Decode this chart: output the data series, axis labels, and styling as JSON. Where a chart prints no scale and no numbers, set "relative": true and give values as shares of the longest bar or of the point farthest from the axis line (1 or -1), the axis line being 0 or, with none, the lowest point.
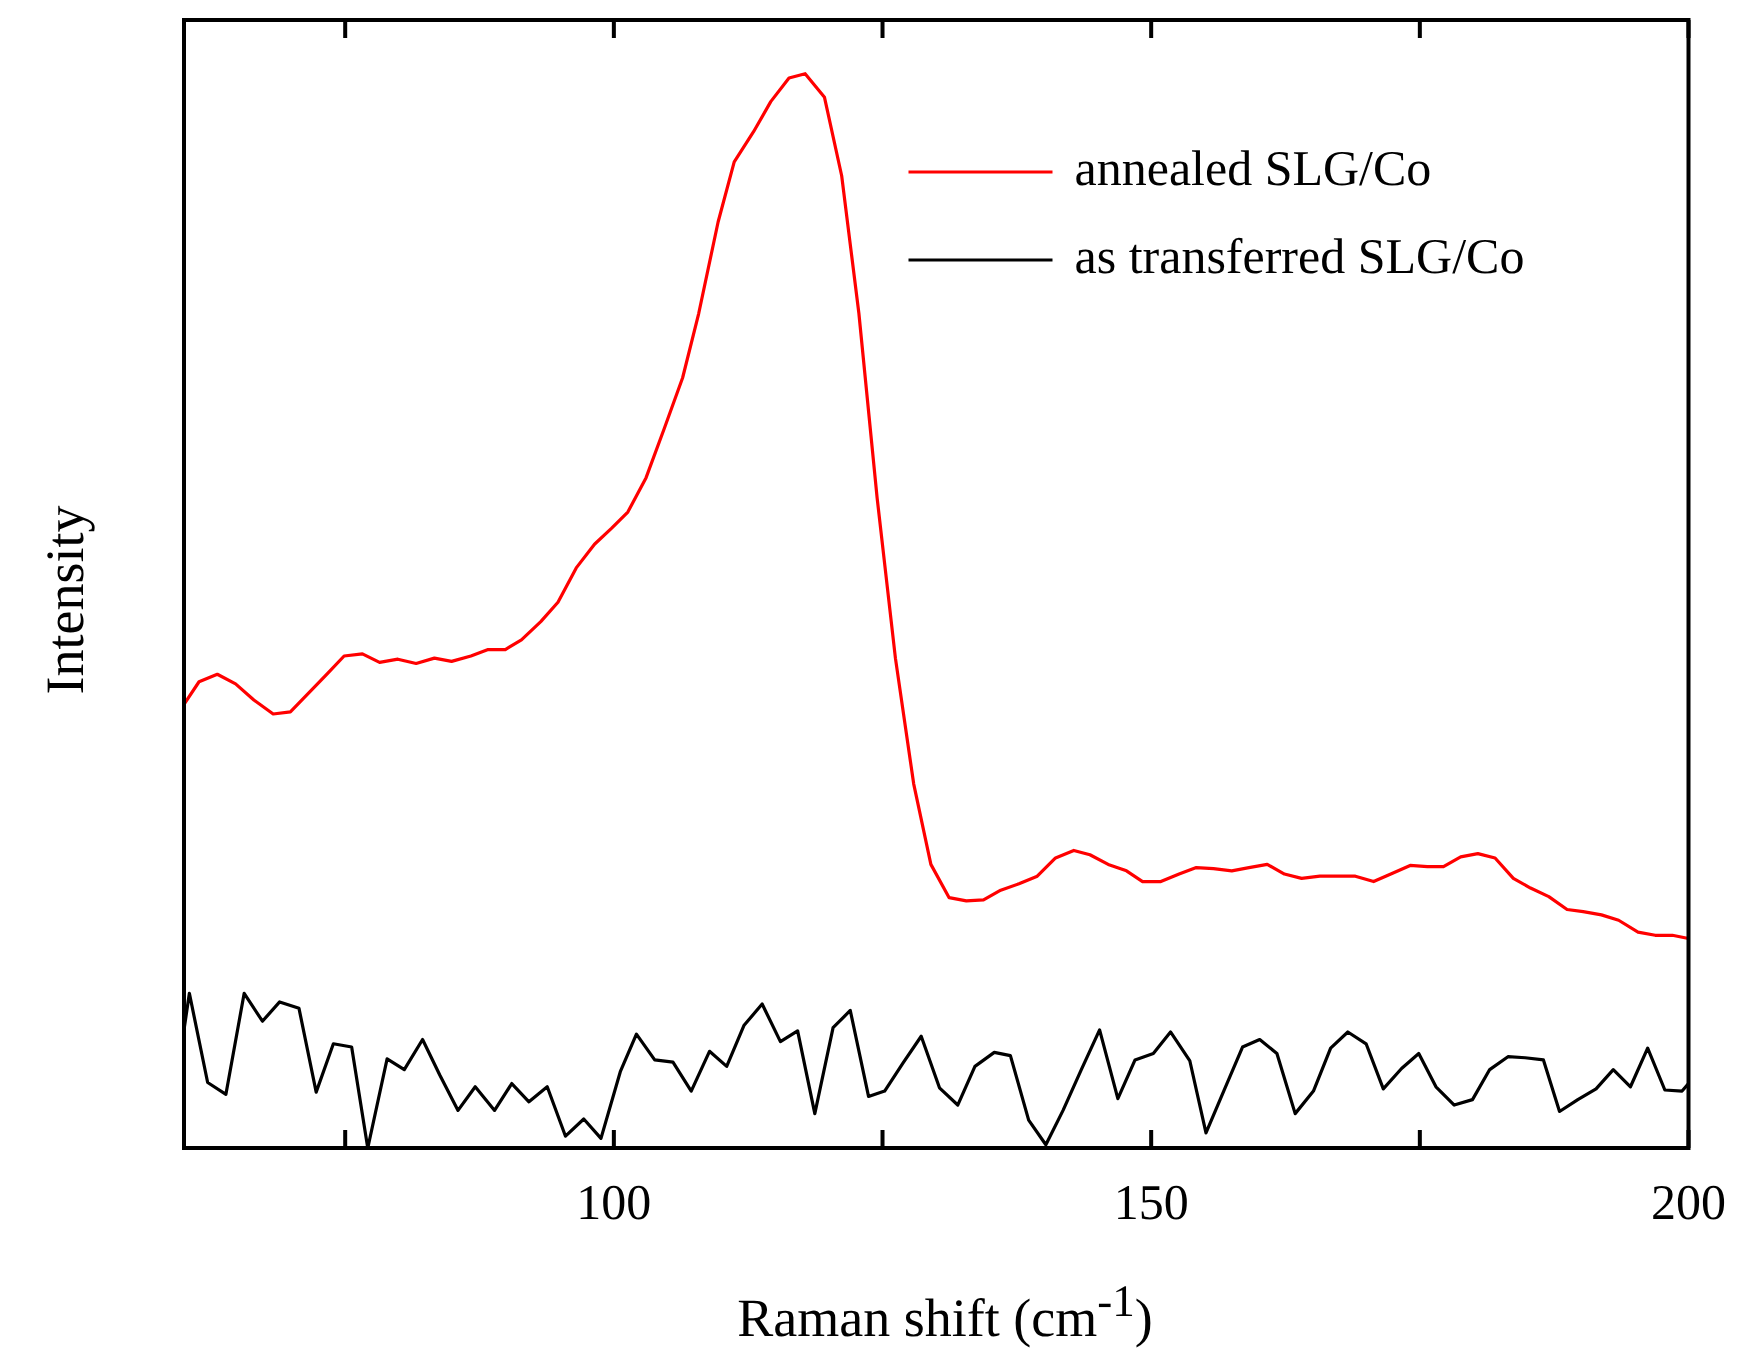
{
  "chart_data": {
    "type": "line",
    "relative": true,
    "xlabel": "Raman shift (cm$^{-1}$)",
    "ylabel": "Intensity",
    "xlim": [
      60,
      200
    ],
    "xticks": [
      {
        "value": 75,
        "label": null
      },
      100,
      {
        "value": 125,
        "label": null
      },
      150,
      {
        "value": 175,
        "label": null
      },
      200
    ],
    "legend": "top right",
    "grid": false,
    "marker": "none",
    "line_style": "solid",
    "series": [
      {
        "name": "annealed SLG/Co",
        "color": "#ff0000",
        "x": [
          60,
          61.4,
          63.1,
          64.8,
          66.5,
          68.3,
          69.9,
          73.3,
          74.9,
          76.6,
          78.2,
          79.9,
          81.6,
          83.3,
          84.9,
          86.7,
          88.3,
          89.9,
          91.4,
          93.2,
          94.8,
          96.5,
          98.2,
          99.8,
          101.3,
          103,
          104.7,
          106.4,
          107.9,
          109.7,
          111.2,
          113,
          114.6,
          116.3,
          117.8,
          119.6,
          121.2,
          122.8,
          124.5,
          126.2,
          127.9,
          129.5,
          131.2,
          132.8,
          134.4,
          136,
          137.7,
          139.4,
          141.1,
          142.8,
          144.3,
          146,
          147.7,
          149.2,
          150.9,
          152.6,
          154.2,
          155.8,
          157.5,
          159.1,
          160.8,
          162.4,
          164,
          165.7,
          167.4,
          169,
          170.7,
          172.3,
          174.1,
          175.7,
          177.2,
          178.8,
          180.4,
          182,
          183.7,
          185.3,
          187,
          188.7,
          190.2,
          191.9,
          193.5,
          195.3,
          196.9,
          198.5,
          200
        ],
        "values": [
          0.413,
          0.434,
          0.441,
          0.432,
          0.417,
          0.404,
          0.406,
          0.441,
          0.458,
          0.46,
          0.452,
          0.455,
          0.451,
          0.456,
          0.453,
          0.458,
          0.464,
          0.464,
          0.473,
          0.49,
          0.508,
          0.54,
          0.562,
          0.577,
          0.592,
          0.624,
          0.67,
          0.717,
          0.777,
          0.862,
          0.918,
          0.946,
          0.974,
          0.996,
          1,
          0.978,
          0.905,
          0.777,
          0.605,
          0.456,
          0.339,
          0.264,
          0.233,
          0.23,
          0.231,
          0.24,
          0.246,
          0.253,
          0.27,
          0.277,
          0.273,
          0.264,
          0.258,
          0.248,
          0.248,
          0.255,
          0.261,
          0.26,
          0.258,
          0.261,
          0.264,
          0.255,
          0.251,
          0.253,
          0.253,
          0.253,
          0.248,
          0.255,
          0.263,
          0.262,
          0.262,
          0.271,
          0.274,
          0.27,
          0.251,
          0.242,
          0.234,
          0.222,
          0.22,
          0.217,
          0.212,
          0.201,
          0.198,
          0.198,
          0.195
        ]
      },
      {
        "name": "as transferred SLG/Co",
        "color": "#000000",
        "x": [
          60,
          60.5,
          62.2,
          63.9,
          65.6,
          67.3,
          68.9,
          70.7,
          72.3,
          73.9,
          75.6,
          77.1,
          78.9,
          80.5,
          82.2,
          83.8,
          85.5,
          87.1,
          88.9,
          90.5,
          92.1,
          93.8,
          95.5,
          97.2,
          98.8,
          100.6,
          102.1,
          103.8,
          105.5,
          107.2,
          108.9,
          110.5,
          112.1,
          113.8,
          115.5,
          117.1,
          118.7,
          120.4,
          122,
          123.7,
          125.2,
          126.9,
          128.6,
          130.3,
          132,
          133.6,
          135.4,
          136.9,
          138.6,
          140.2,
          141.8,
          143.5,
          145.2,
          146.9,
          148.5,
          150.2,
          151.8,
          153.6,
          155.1,
          156.8,
          158.5,
          160.1,
          161.7,
          163.4,
          165.1,
          166.7,
          168.3,
          170,
          171.6,
          173.3,
          174.9,
          176.5,
          178.2,
          179.9,
          181.5,
          183.2,
          184.8,
          186.5,
          188,
          189.7,
          191.4,
          193,
          194.6,
          196.2,
          197.8,
          199.4,
          200
        ],
        "values": [
          0.11,
          0.144,
          0.061,
          0.05,
          0.144,
          0.118,
          0.136,
          0.13,
          0.052,
          0.097,
          0.094,
          0,
          0.083,
          0.073,
          0.101,
          0.068,
          0.035,
          0.057,
          0.035,
          0.06,
          0.043,
          0.057,
          0.011,
          0.027,
          0.009,
          0.071,
          0.106,
          0.082,
          0.08,
          0.053,
          0.09,
          0.076,
          0.114,
          0.134,
          0.099,
          0.109,
          0.032,
          0.112,
          0.128,
          0.048,
          0.053,
          0.079,
          0.104,
          0.056,
          0.04,
          0.076,
          0.089,
          0.086,
          0.026,
          0.003,
          0.035,
          0.073,
          0.11,
          0.046,
          0.082,
          0.088,
          0.108,
          0.081,
          0.014,
          0.054,
          0.094,
          0.101,
          0.088,
          0.032,
          0.053,
          0.093,
          0.108,
          0.097,
          0.055,
          0.074,
          0.088,
          0.057,
          0.04,
          0.045,
          0.073,
          0.085,
          0.084,
          0.082,
          0.034,
          0.045,
          0.055,
          0.073,
          0.057,
          0.093,
          0.054,
          0.053,
          0.06
        ]
      }
    ]
  }
}
